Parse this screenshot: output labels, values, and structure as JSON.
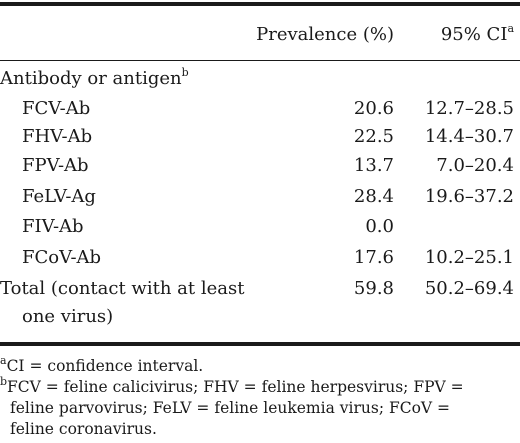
{
  "header": {
    "prevalence": "Prevalence (%)",
    "ci": "95% CI",
    "ci_sup": "a"
  },
  "section": {
    "label": "Antibody or antigen",
    "label_sup": "b"
  },
  "rows": [
    {
      "label": "FCV-Ab",
      "prevalence": "20.6",
      "ci": "12.7–28.5"
    },
    {
      "label": "FHV-Ab",
      "prevalence": "22.5",
      "ci": "14.4–30.7"
    },
    {
      "label": "FPV-Ab",
      "prevalence": "13.7",
      "ci": "7.0–20.4"
    },
    {
      "label": "FeLV-Ag",
      "prevalence": "28.4",
      "ci": "19.6–37.2"
    },
    {
      "label": "FIV-Ab",
      "prevalence": "0.0",
      "ci": ""
    },
    {
      "label": "FCoV-Ab",
      "prevalence": "17.6",
      "ci": "10.2–25.1"
    }
  ],
  "total": {
    "label_line1": "Total (contact with at least",
    "label_line2": "one virus)",
    "prevalence": "59.8",
    "ci": "50.2–69.4"
  },
  "footnotes": {
    "a_mark": "a",
    "a_text": "CI = confidence interval.",
    "b_mark": "b",
    "b_line1": "FCV = feline calicivirus; FHV = feline herpesvirus; FPV =",
    "b_line2": "feline parvovirus; FeLV = feline leukemia virus; FCoV =",
    "b_line3": "feline coronavirus."
  }
}
